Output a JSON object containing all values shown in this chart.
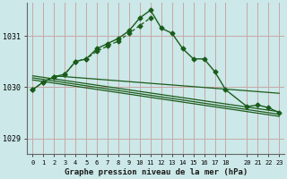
{
  "bg_color": "#cce8e8",
  "grid_color": "#c8a8a8",
  "line_color": "#1a5c1a",
  "xlabel": "Graphe pression niveau de la mer (hPa)",
  "xlim": [
    -0.5,
    23.5
  ],
  "ylim": [
    1028.7,
    1031.65
  ],
  "yticks": [
    1029,
    1030,
    1031
  ],
  "xticks": [
    0,
    1,
    2,
    3,
    4,
    5,
    6,
    7,
    8,
    9,
    10,
    11,
    12,
    13,
    14,
    15,
    16,
    17,
    18,
    20,
    21,
    22,
    23
  ],
  "main_x": [
    0,
    1,
    2,
    3,
    4,
    5,
    6,
    7,
    8,
    9,
    10,
    11,
    12,
    13,
    14,
    15,
    16,
    17,
    18,
    20,
    21,
    22,
    23
  ],
  "main_y": [
    1029.95,
    1030.1,
    1030.2,
    1030.25,
    1030.5,
    1030.55,
    1030.75,
    1030.85,
    1030.95,
    1031.1,
    1031.35,
    1031.5,
    1031.15,
    1031.05,
    1030.75,
    1030.55,
    1030.55,
    1030.3,
    1029.95,
    1029.62,
    1029.65,
    1029.6,
    1029.5
  ],
  "dotted_x": [
    0,
    1,
    2,
    3,
    4,
    5,
    6,
    7,
    8,
    9,
    10,
    11
  ],
  "dotted_y": [
    1029.95,
    1030.1,
    1030.2,
    1030.25,
    1030.5,
    1030.55,
    1030.7,
    1030.8,
    1030.9,
    1031.05,
    1031.2,
    1031.35
  ],
  "trend1_x": [
    0,
    23
  ],
  "trend1_y": [
    1030.22,
    1029.52
  ],
  "trend2_x": [
    0,
    23
  ],
  "trend2_y": [
    1030.18,
    1029.47
  ],
  "trend3_x": [
    0,
    23
  ],
  "trend3_y": [
    1030.14,
    1029.43
  ],
  "trend4_x": [
    2,
    23
  ],
  "trend4_y": [
    1030.22,
    1029.88
  ]
}
